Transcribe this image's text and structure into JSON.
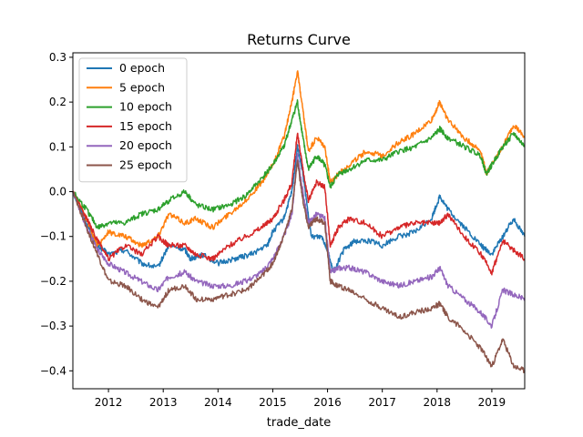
{
  "chart_data": {
    "type": "line",
    "title": "Returns Curve",
    "xlabel": "trade_date",
    "ylabel": "",
    "xlim": [
      2011.35,
      2019.6
    ],
    "ylim": [
      -0.44,
      0.31
    ],
    "xticks": [
      {
        "value": 2012,
        "label": "2012"
      },
      {
        "value": 2013,
        "label": "2013"
      },
      {
        "value": 2014,
        "label": "2014"
      },
      {
        "value": 2015,
        "label": "2015"
      },
      {
        "value": 2016,
        "label": "2016"
      },
      {
        "value": 2017,
        "label": "2017"
      },
      {
        "value": 2018,
        "label": "2018"
      },
      {
        "value": 2019,
        "label": "2019"
      }
    ],
    "yticks": [
      {
        "value": 0.3,
        "label": "0.3"
      },
      {
        "value": 0.2,
        "label": "0.2"
      },
      {
        "value": 0.1,
        "label": "0.1"
      },
      {
        "value": 0.0,
        "label": "0.0"
      },
      {
        "value": -0.1,
        "label": "−0.1"
      },
      {
        "value": -0.2,
        "label": "−0.2"
      },
      {
        "value": -0.3,
        "label": "−0.3"
      },
      {
        "value": -0.4,
        "label": "−0.4"
      }
    ],
    "grid": false,
    "legend_position": "top-left",
    "series": [
      {
        "name": "0 epoch",
        "color": "#1f77b4",
        "x": [
          2011.35,
          2011.6,
          2011.8,
          2012.0,
          2012.3,
          2012.6,
          2012.9,
          2013.1,
          2013.4,
          2013.5,
          2013.7,
          2014.0,
          2014.3,
          2014.6,
          2014.9,
          2015.0,
          2015.2,
          2015.35,
          2015.45,
          2015.55,
          2015.7,
          2015.9,
          2016.0,
          2016.1,
          2016.3,
          2016.5,
          2016.8,
          2017.0,
          2017.3,
          2017.6,
          2017.9,
          2018.05,
          2018.2,
          2018.5,
          2018.8,
          2019.0,
          2019.2,
          2019.4,
          2019.6
        ],
        "y": [
          0.0,
          -0.07,
          -0.12,
          -0.14,
          -0.13,
          -0.16,
          -0.17,
          -0.12,
          -0.13,
          -0.15,
          -0.14,
          -0.16,
          -0.15,
          -0.14,
          -0.12,
          -0.09,
          -0.06,
          0.0,
          0.1,
          0.04,
          -0.1,
          -0.1,
          -0.13,
          -0.18,
          -0.13,
          -0.11,
          -0.11,
          -0.12,
          -0.1,
          -0.09,
          -0.06,
          -0.01,
          -0.04,
          -0.08,
          -0.12,
          -0.14,
          -0.1,
          -0.06,
          -0.1
        ]
      },
      {
        "name": "5 epoch",
        "color": "#ff7f0e",
        "x": [
          2011.35,
          2011.6,
          2011.8,
          2012.0,
          2012.3,
          2012.6,
          2012.9,
          2013.1,
          2013.4,
          2013.6,
          2013.9,
          2014.2,
          2014.5,
          2014.8,
          2015.0,
          2015.2,
          2015.35,
          2015.45,
          2015.55,
          2015.65,
          2015.8,
          2015.95,
          2016.05,
          2016.2,
          2016.4,
          2016.7,
          2017.0,
          2017.3,
          2017.6,
          2017.9,
          2018.05,
          2018.2,
          2018.5,
          2018.8,
          2018.9,
          2019.0,
          2019.2,
          2019.4,
          2019.6
        ],
        "y": [
          0.0,
          -0.06,
          -0.12,
          -0.09,
          -0.1,
          -0.12,
          -0.1,
          -0.05,
          -0.07,
          -0.06,
          -0.08,
          -0.05,
          -0.02,
          0.02,
          0.06,
          0.12,
          0.2,
          0.27,
          0.18,
          0.09,
          0.12,
          0.1,
          0.02,
          0.04,
          0.06,
          0.09,
          0.08,
          0.11,
          0.13,
          0.16,
          0.2,
          0.16,
          0.12,
          0.09,
          0.04,
          0.06,
          0.1,
          0.15,
          0.12
        ]
      },
      {
        "name": "10 epoch",
        "color": "#2ca02c",
        "x": [
          2011.35,
          2011.6,
          2011.8,
          2012.0,
          2012.3,
          2012.6,
          2012.9,
          2013.1,
          2013.4,
          2013.6,
          2013.9,
          2014.2,
          2014.5,
          2014.8,
          2015.0,
          2015.2,
          2015.35,
          2015.45,
          2015.55,
          2015.65,
          2015.8,
          2015.95,
          2016.05,
          2016.2,
          2016.4,
          2016.7,
          2017.0,
          2017.3,
          2017.6,
          2017.9,
          2018.05,
          2018.2,
          2018.5,
          2018.8,
          2018.9,
          2019.0,
          2019.2,
          2019.4,
          2019.6
        ],
        "y": [
          0.0,
          -0.04,
          -0.08,
          -0.07,
          -0.07,
          -0.05,
          -0.04,
          -0.02,
          0.0,
          -0.03,
          -0.04,
          -0.03,
          -0.01,
          0.03,
          0.06,
          0.1,
          0.16,
          0.2,
          0.12,
          0.05,
          0.08,
          0.06,
          0.01,
          0.04,
          0.05,
          0.07,
          0.07,
          0.09,
          0.1,
          0.12,
          0.14,
          0.12,
          0.1,
          0.08,
          0.04,
          0.06,
          0.1,
          0.13,
          0.1
        ]
      },
      {
        "name": "15 epoch",
        "color": "#d62728",
        "x": [
          2011.35,
          2011.6,
          2011.8,
          2012.0,
          2012.3,
          2012.6,
          2012.9,
          2013.1,
          2013.4,
          2013.6,
          2013.9,
          2014.2,
          2014.5,
          2014.8,
          2015.0,
          2015.2,
          2015.35,
          2015.45,
          2015.55,
          2015.65,
          2015.8,
          2015.95,
          2016.05,
          2016.2,
          2016.4,
          2016.7,
          2017.0,
          2017.3,
          2017.6,
          2017.9,
          2018.05,
          2018.2,
          2018.5,
          2018.8,
          2019.0,
          2019.2,
          2019.4,
          2019.6
        ],
        "y": [
          0.0,
          -0.06,
          -0.11,
          -0.15,
          -0.12,
          -0.14,
          -0.1,
          -0.12,
          -0.12,
          -0.14,
          -0.15,
          -0.12,
          -0.1,
          -0.08,
          -0.06,
          -0.02,
          0.02,
          0.13,
          0.05,
          -0.02,
          0.02,
          0.01,
          -0.12,
          -0.08,
          -0.06,
          -0.07,
          -0.1,
          -0.08,
          -0.07,
          -0.07,
          -0.07,
          -0.05,
          -0.1,
          -0.14,
          -0.18,
          -0.11,
          -0.13,
          -0.15
        ]
      },
      {
        "name": "20 epoch",
        "color": "#9467bd",
        "x": [
          2011.35,
          2011.6,
          2011.8,
          2012.0,
          2012.3,
          2012.6,
          2012.9,
          2013.1,
          2013.4,
          2013.6,
          2013.9,
          2014.2,
          2014.5,
          2014.8,
          2015.0,
          2015.2,
          2015.35,
          2015.45,
          2015.55,
          2015.65,
          2015.8,
          2015.95,
          2016.05,
          2016.2,
          2016.4,
          2016.7,
          2017.0,
          2017.3,
          2017.6,
          2017.9,
          2018.05,
          2018.2,
          2018.5,
          2018.8,
          2019.0,
          2019.2,
          2019.4,
          2019.6
        ],
        "y": [
          0.0,
          -0.08,
          -0.13,
          -0.16,
          -0.18,
          -0.2,
          -0.22,
          -0.19,
          -0.18,
          -0.2,
          -0.21,
          -0.21,
          -0.2,
          -0.18,
          -0.15,
          -0.1,
          -0.05,
          0.08,
          0.0,
          -0.07,
          -0.05,
          -0.06,
          -0.18,
          -0.17,
          -0.17,
          -0.18,
          -0.2,
          -0.21,
          -0.2,
          -0.19,
          -0.17,
          -0.21,
          -0.24,
          -0.27,
          -0.3,
          -0.22,
          -0.23,
          -0.24
        ]
      },
      {
        "name": "25 epoch",
        "color": "#8c564b",
        "x": [
          2011.35,
          2011.6,
          2011.8,
          2012.0,
          2012.3,
          2012.6,
          2012.9,
          2013.1,
          2013.4,
          2013.6,
          2013.9,
          2014.2,
          2014.5,
          2014.8,
          2015.0,
          2015.2,
          2015.35,
          2015.45,
          2015.55,
          2015.65,
          2015.8,
          2015.95,
          2016.05,
          2016.2,
          2016.4,
          2016.7,
          2017.0,
          2017.3,
          2017.6,
          2017.9,
          2018.05,
          2018.2,
          2018.5,
          2018.8,
          2019.0,
          2019.2,
          2019.4,
          2019.6
        ],
        "y": [
          0.0,
          -0.08,
          -0.14,
          -0.2,
          -0.21,
          -0.24,
          -0.26,
          -0.22,
          -0.21,
          -0.24,
          -0.24,
          -0.23,
          -0.22,
          -0.19,
          -0.16,
          -0.1,
          -0.04,
          0.07,
          -0.02,
          -0.08,
          -0.06,
          -0.07,
          -0.2,
          -0.21,
          -0.22,
          -0.24,
          -0.26,
          -0.28,
          -0.27,
          -0.26,
          -0.25,
          -0.28,
          -0.31,
          -0.35,
          -0.39,
          -0.33,
          -0.39,
          -0.4
        ]
      }
    ]
  }
}
